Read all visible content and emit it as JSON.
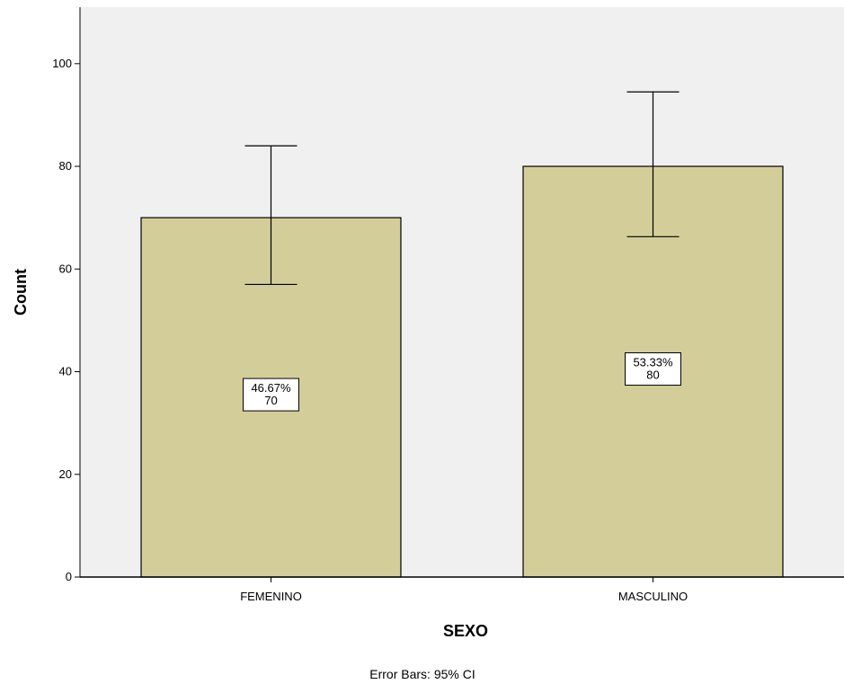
{
  "chart_data": {
    "type": "bar",
    "categories": [
      "FEMENINO",
      "MASCULINO"
    ],
    "values": [
      70,
      80
    ],
    "error_bars": {
      "lower": [
        57,
        66.3
      ],
      "upper": [
        84,
        94.5
      ]
    },
    "data_labels": [
      {
        "percent": "46.67%",
        "count": "70"
      },
      {
        "percent": "53.33%",
        "count": "80"
      }
    ],
    "xlabel": "SEXO",
    "ylabel": "Count",
    "ylim": [
      0,
      111
    ],
    "yticks": [
      0,
      20,
      40,
      60,
      80,
      100
    ],
    "footnote": "Error Bars: 95% CI",
    "grid": false,
    "colors": {
      "bar_fill": "#d3ce99",
      "bar_stroke": "#000000",
      "plot_background": "#f0f0f0"
    }
  }
}
